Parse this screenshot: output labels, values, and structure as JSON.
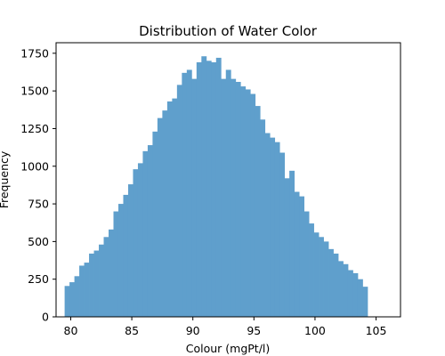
{
  "chart_data": {
    "type": "bar",
    "subtype": "histogram",
    "title": "Distribution of Water Color",
    "xlabel": "Colour (mgPt/l)",
    "ylabel": "Frequency",
    "xlim": [
      78.8,
      107.0
    ],
    "ylim": [
      0,
      1820
    ],
    "x_ticks": [
      80,
      85,
      90,
      95,
      100,
      105
    ],
    "y_ticks": [
      0,
      250,
      500,
      750,
      1000,
      1250,
      1500,
      1750
    ],
    "bin_start": 79.5,
    "bin_width": 0.4,
    "values": [
      205,
      230,
      270,
      340,
      360,
      420,
      440,
      480,
      530,
      580,
      700,
      750,
      810,
      880,
      980,
      1020,
      1100,
      1140,
      1230,
      1320,
      1370,
      1430,
      1450,
      1540,
      1620,
      1640,
      1580,
      1690,
      1730,
      1700,
      1690,
      1720,
      1580,
      1640,
      1580,
      1560,
      1530,
      1510,
      1480,
      1400,
      1310,
      1220,
      1190,
      1160,
      1090,
      920,
      970,
      830,
      800,
      700,
      620,
      560,
      530,
      500,
      450,
      420,
      370,
      350,
      310,
      290,
      250,
      200
    ],
    "bar_color": "#5f9fcc",
    "grid": false,
    "legend": "none"
  }
}
